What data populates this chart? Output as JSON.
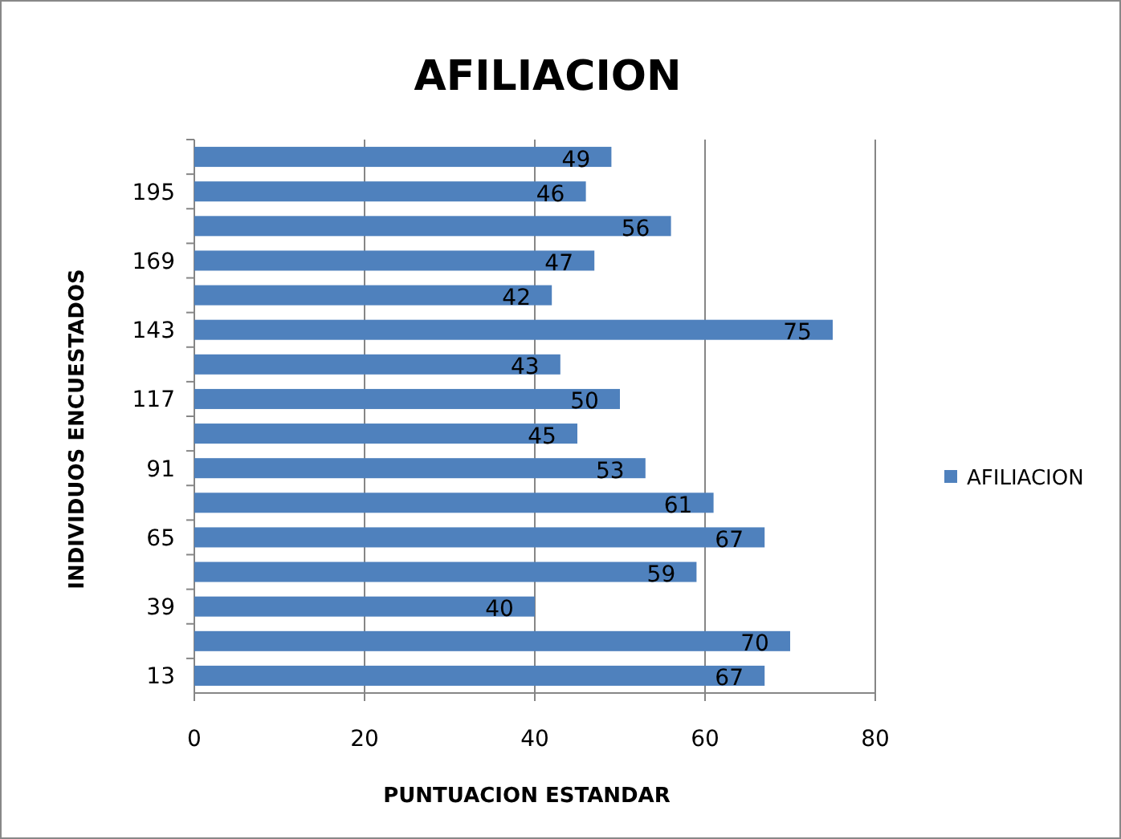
{
  "chart_data": {
    "type": "bar",
    "orientation": "horizontal",
    "title": "AFILIACION",
    "xlabel": "PUNTUACION ESTANDAR",
    "ylabel": "INDIVIDUOS ENCUESTADOS",
    "categories": [
      null,
      "195",
      null,
      "169",
      null,
      "143",
      null,
      "117",
      null,
      "91",
      null,
      "65",
      null,
      "39",
      null,
      "13"
    ],
    "series": [
      {
        "name": "AFILIACION",
        "color": "#4f81bd",
        "values": [
          49,
          46,
          56,
          47,
          42,
          75,
          43,
          50,
          45,
          53,
          61,
          67,
          59,
          40,
          70,
          67
        ]
      }
    ],
    "xlim": [
      0,
      80
    ],
    "xticks": [
      0,
      20,
      40,
      60,
      80
    ],
    "grid": "x",
    "legend": "right",
    "data_labels": true
  }
}
